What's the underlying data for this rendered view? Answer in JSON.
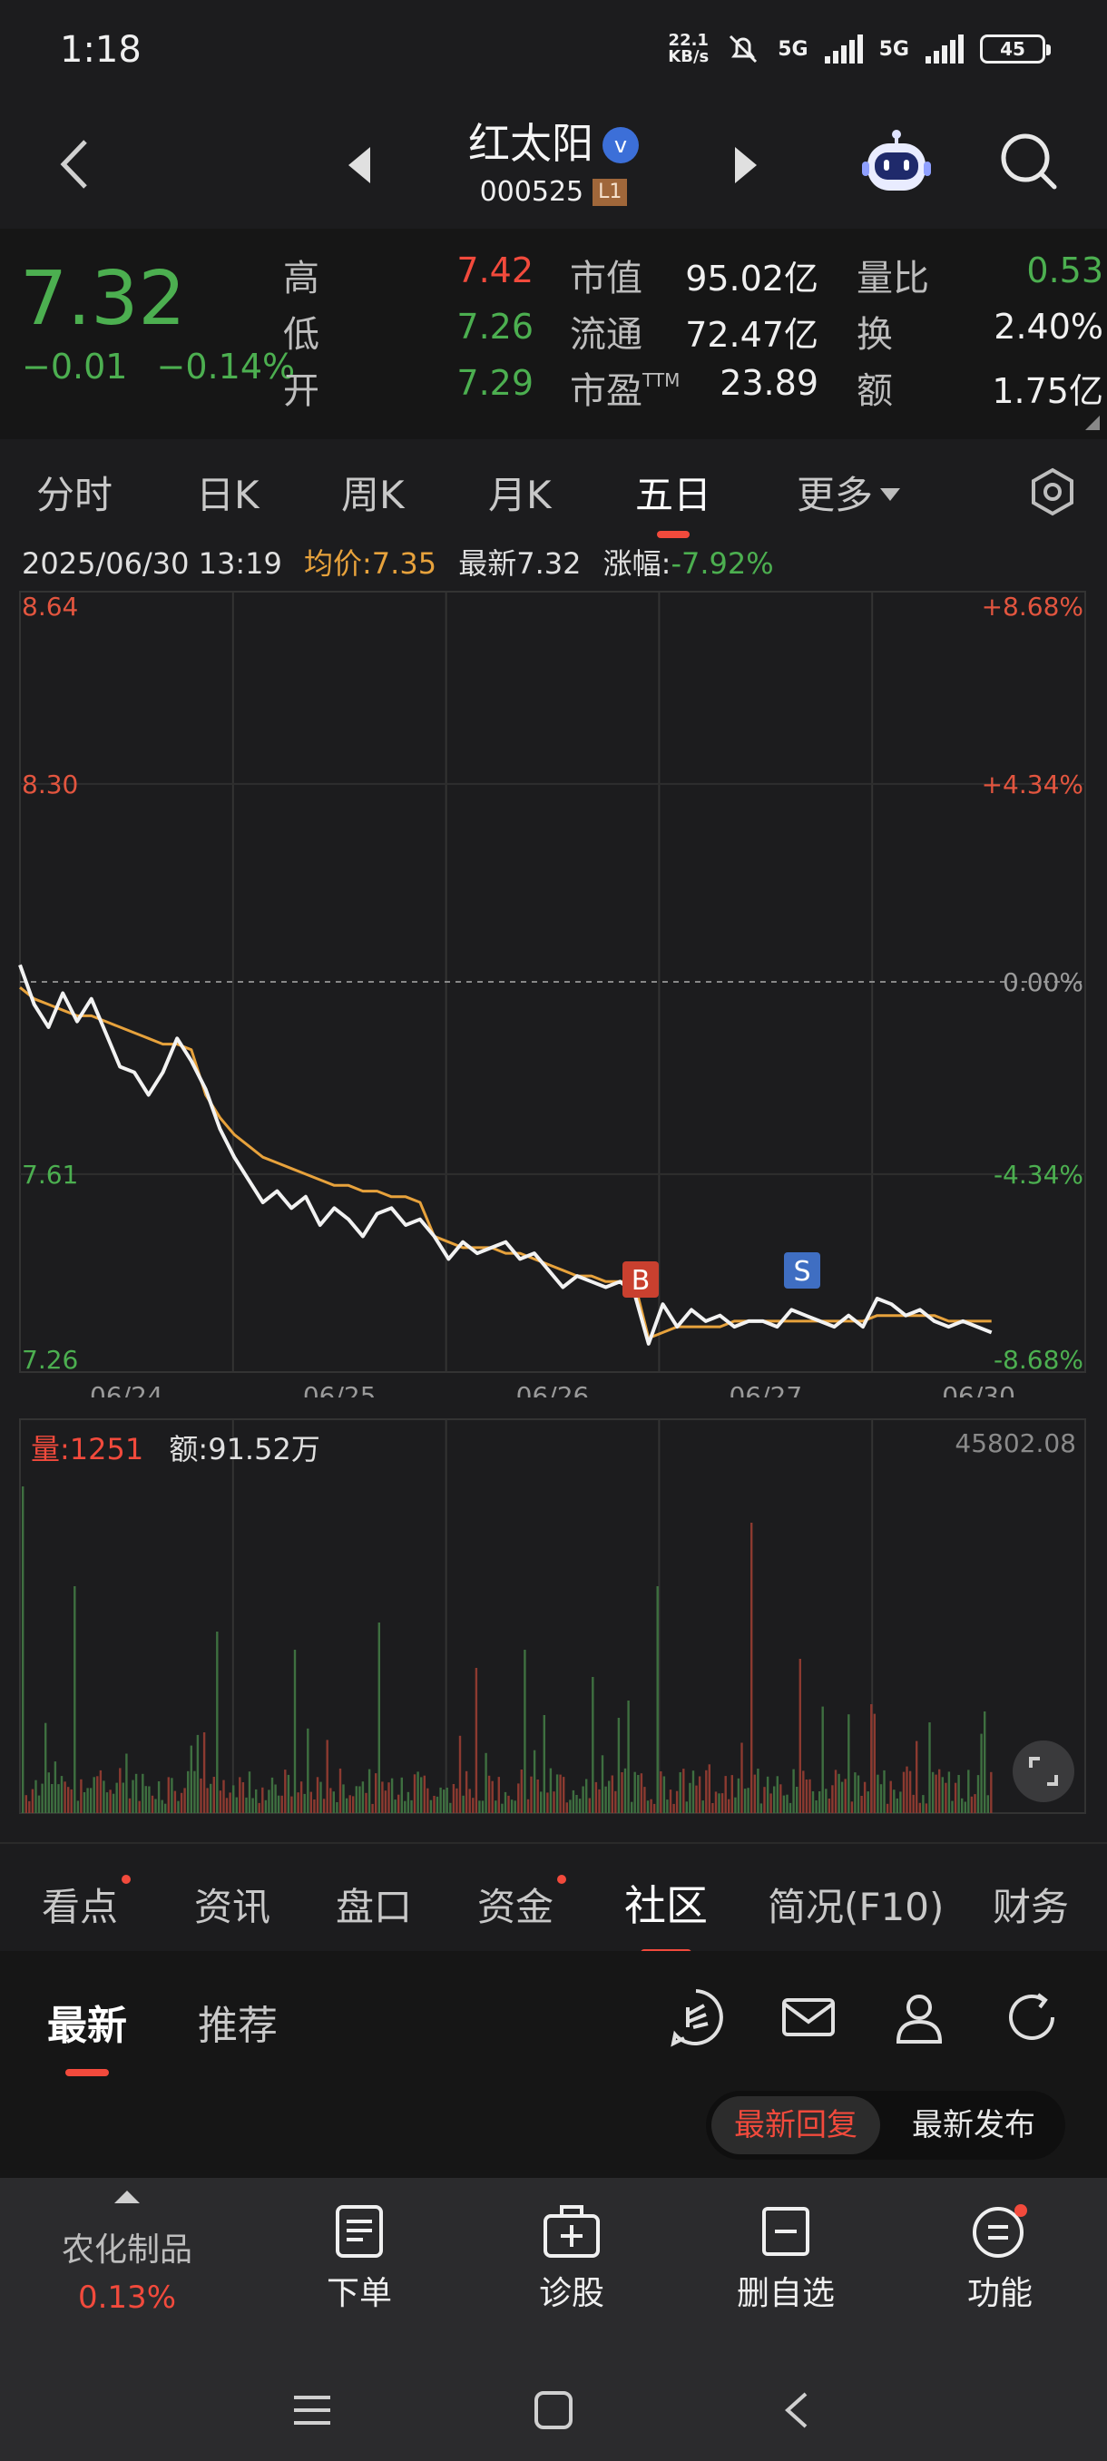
{
  "status": {
    "time": "1:18",
    "net_speed_top": "22.1",
    "net_speed_bottom": "KB/s",
    "net1": "5G",
    "net2": "5G",
    "battery": "45"
  },
  "header": {
    "name": "红太阳",
    "verified_mark": "v",
    "code": "000525",
    "level": "L1"
  },
  "quote": {
    "price": "7.32",
    "change": "−0.01",
    "change_pct": "−0.14%",
    "fields": [
      {
        "label": "高",
        "value": "7.42",
        "color": "red"
      },
      {
        "label": "低",
        "value": "7.26",
        "color": "green"
      },
      {
        "label": "开",
        "value": "7.29",
        "color": "green"
      },
      {
        "label": "市值",
        "value": "95.02亿",
        "color": "white"
      },
      {
        "label": "流通",
        "value": "72.47亿",
        "color": "white"
      },
      {
        "label": "市盈",
        "label_sup": "TTM",
        "value": "23.89",
        "color": "white"
      },
      {
        "label": "量比",
        "value": "0.53",
        "color": "green"
      },
      {
        "label": "换",
        "value": "2.40%",
        "color": "white"
      },
      {
        "label": "额",
        "value": "1.75亿",
        "color": "white"
      }
    ]
  },
  "chart_tabs": [
    "分时",
    "日K",
    "周K",
    "月K",
    "五日",
    "更多"
  ],
  "active_chart_tab": "五日",
  "info": {
    "datetime": "2025/06/30 13:19",
    "avg_label": "均价:",
    "avg": "7.35",
    "latest_label": "最新",
    "latest": "7.32",
    "chg_label": "涨幅:",
    "chg": "-7.92%"
  },
  "chart_data": {
    "type": "line",
    "x_labels": [
      "06/24",
      "06/25",
      "06/26",
      "06/27",
      "06/30"
    ],
    "y_ticks_left": [
      "8.64",
      "8.30",
      "7.61",
      "7.26"
    ],
    "y_ticks_right": [
      "+8.68%",
      "+4.34%",
      "0.00%",
      "-4.34%",
      "-8.68%"
    ],
    "ylim": [
      7.26,
      8.64
    ],
    "prev_close": 7.95,
    "series": [
      {
        "values": [
          7.98,
          7.91,
          7.87,
          7.93,
          7.88,
          7.92,
          7.86,
          7.8,
          7.79,
          7.75,
          7.79,
          7.85,
          7.81,
          7.76,
          7.69,
          7.64,
          7.6,
          7.56,
          7.58,
          7.55,
          7.57,
          7.52,
          7.55,
          7.53,
          7.5,
          7.54,
          7.55,
          7.52,
          7.53,
          7.5,
          7.46,
          7.49,
          7.47,
          7.48,
          7.49,
          7.46,
          7.47,
          7.44,
          7.41,
          7.43,
          7.42,
          7.41,
          7.42,
          7.4,
          7.31,
          7.38,
          7.34,
          7.37,
          7.35,
          7.36,
          7.34,
          7.35,
          7.35,
          7.34,
          7.37,
          7.36,
          7.35,
          7.34,
          7.36,
          7.34,
          7.39,
          7.38,
          7.36,
          7.37,
          7.35,
          7.34,
          7.35,
          7.34,
          7.33
        ]
      },
      {
        "values": [
          7.94,
          7.92,
          7.91,
          7.9,
          7.89,
          7.89,
          7.88,
          7.87,
          7.86,
          7.85,
          7.84,
          7.84,
          7.83,
          7.75,
          7.71,
          7.68,
          7.66,
          7.64,
          7.63,
          7.62,
          7.61,
          7.6,
          7.59,
          7.59,
          7.58,
          7.58,
          7.57,
          7.57,
          7.56,
          7.5,
          7.49,
          7.48,
          7.48,
          7.48,
          7.47,
          7.47,
          7.46,
          7.45,
          7.44,
          7.43,
          7.43,
          7.42,
          7.42,
          7.42,
          7.32,
          7.33,
          7.34,
          7.34,
          7.34,
          7.34,
          7.35,
          7.35,
          7.35,
          7.35,
          7.35,
          7.35,
          7.35,
          7.35,
          7.35,
          7.35,
          7.36,
          7.36,
          7.36,
          7.36,
          7.36,
          7.35,
          7.35,
          7.35,
          7.35
        ]
      }
    ],
    "markers": [
      {
        "label": "B",
        "color": "#c9402f"
      },
      {
        "label": "S",
        "color": "#3f6ec2"
      }
    ]
  },
  "volume": {
    "vol_label": "量:",
    "vol": "1251",
    "amt_label": "额:",
    "amt": "91.52万",
    "max": "45802.08"
  },
  "content_tabs": [
    {
      "label": "看点",
      "dot": true
    },
    {
      "label": "资讯",
      "dot": false
    },
    {
      "label": "盘口",
      "dot": false
    },
    {
      "label": "资金",
      "dot": true
    },
    {
      "label": "社区",
      "dot": false
    },
    {
      "label": "简况(F10)",
      "dot": false
    },
    {
      "label": "财务",
      "dot": false
    }
  ],
  "sub_tabs": {
    "latest": "最新",
    "recommend": "推荐"
  },
  "sort": {
    "reply": "最新回复",
    "publish": "最新发布"
  },
  "bottom_nav": {
    "sector_name": "农化制品",
    "sector_pct": "0.13%",
    "order": "下单",
    "diagnose": "诊股",
    "remove": "删自选",
    "functions": "功能"
  }
}
